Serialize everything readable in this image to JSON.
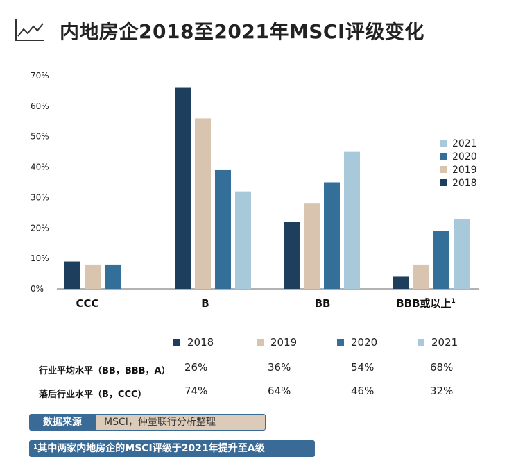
{
  "header": {
    "title": "内地房企2018至2021年MSCI评级变化"
  },
  "colors": {
    "2018": "#1d3e5c",
    "2019": "#d9c4b0",
    "2020": "#336f99",
    "2021": "#a7c9d9"
  },
  "chart_data": {
    "type": "bar",
    "categories": [
      "CCC",
      "B",
      "BB",
      "BBB或以上"
    ],
    "category_footnote_marker": "1",
    "series": [
      {
        "name": "2018",
        "values": [
          9,
          66,
          22,
          4
        ]
      },
      {
        "name": "2019",
        "values": [
          8,
          56,
          28,
          8
        ]
      },
      {
        "name": "2020",
        "values": [
          8,
          39,
          35,
          19
        ]
      },
      {
        "name": "2021",
        "values": [
          null,
          32,
          45,
          23
        ]
      }
    ],
    "yticks": [
      "0%",
      "10%",
      "20%",
      "30%",
      "40%",
      "50%",
      "60%",
      "70%"
    ],
    "ylim": [
      0,
      70
    ],
    "legend": [
      "2021",
      "2020",
      "2019",
      "2018"
    ],
    "legend_position": "right"
  },
  "table": {
    "headers": [
      "2018",
      "2019",
      "2020",
      "2021"
    ],
    "rows": [
      {
        "label": "行业平均水平（BB，BBB，A）",
        "values": [
          "26%",
          "36%",
          "54%",
          "68%"
        ]
      },
      {
        "label": "落后行业水平（B，CCC）",
        "values": [
          "74%",
          "64%",
          "46%",
          "32%"
        ]
      }
    ]
  },
  "source": {
    "label": "数据来源",
    "value": "MSCI，仲量联行分析整理"
  },
  "footnote": {
    "marker": "1",
    "text": "其中两家内地房企的MSCI评级于2021年提升至A级"
  }
}
